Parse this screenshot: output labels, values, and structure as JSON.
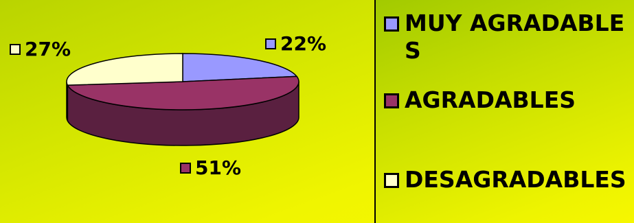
{
  "chart_data": {
    "type": "pie",
    "title": "",
    "slices": [
      {
        "label": "MUY AGRADABLES",
        "value": 22,
        "percent_label": "22%",
        "color": "#9999ff"
      },
      {
        "label": "AGRADABLES",
        "value": 51,
        "percent_label": "51%",
        "color": "#993366"
      },
      {
        "label": "DESAGRADABLES",
        "value": 27,
        "percent_label": "27%",
        "color": "#ffffcc"
      }
    ],
    "side_color": "#5a2040",
    "legend_placement": "right",
    "three_d": true
  }
}
